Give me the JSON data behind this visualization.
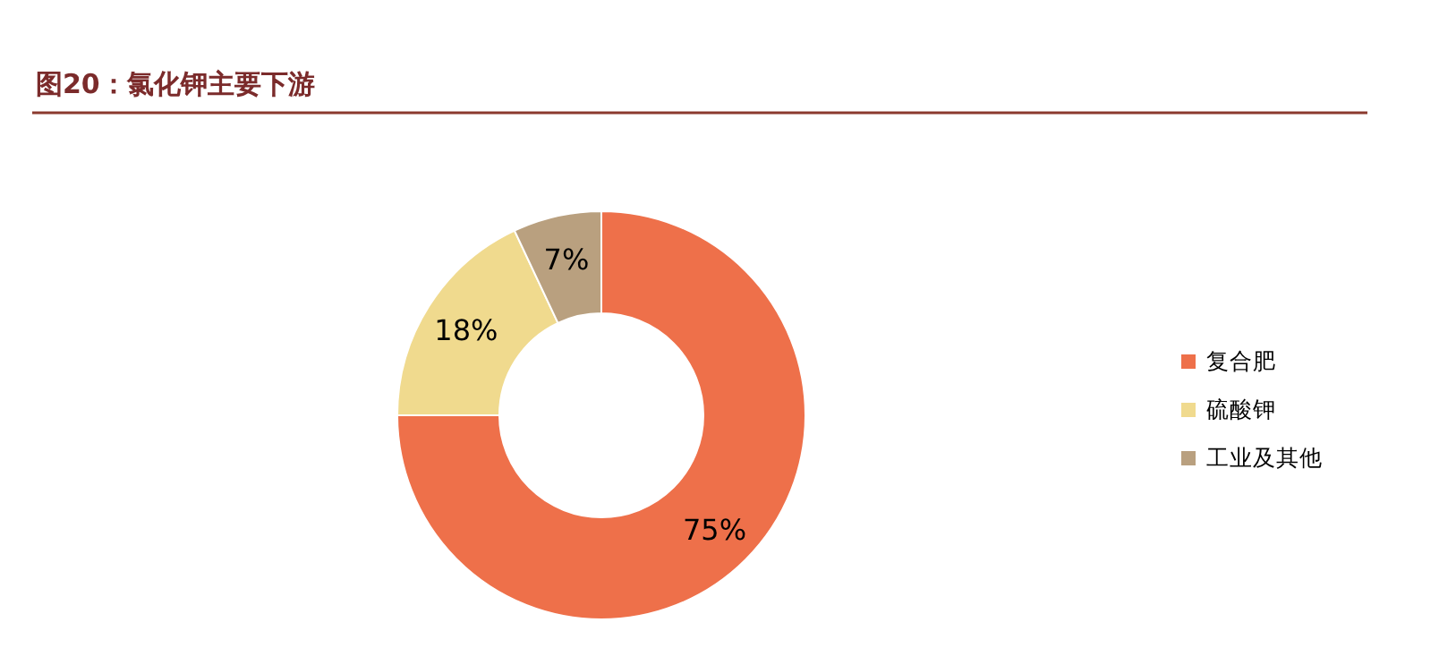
{
  "chart_data": {
    "type": "donut",
    "title": "图20：氯化钾主要下游",
    "categories": [
      "复合肥",
      "硫酸钾",
      "工业及其他"
    ],
    "values": [
      75,
      18,
      7
    ],
    "colors": [
      "#ee704a",
      "#f0da8e",
      "#b9a07f"
    ],
    "value_labels": [
      "75%",
      "18%",
      "7%"
    ],
    "legend": "right"
  }
}
